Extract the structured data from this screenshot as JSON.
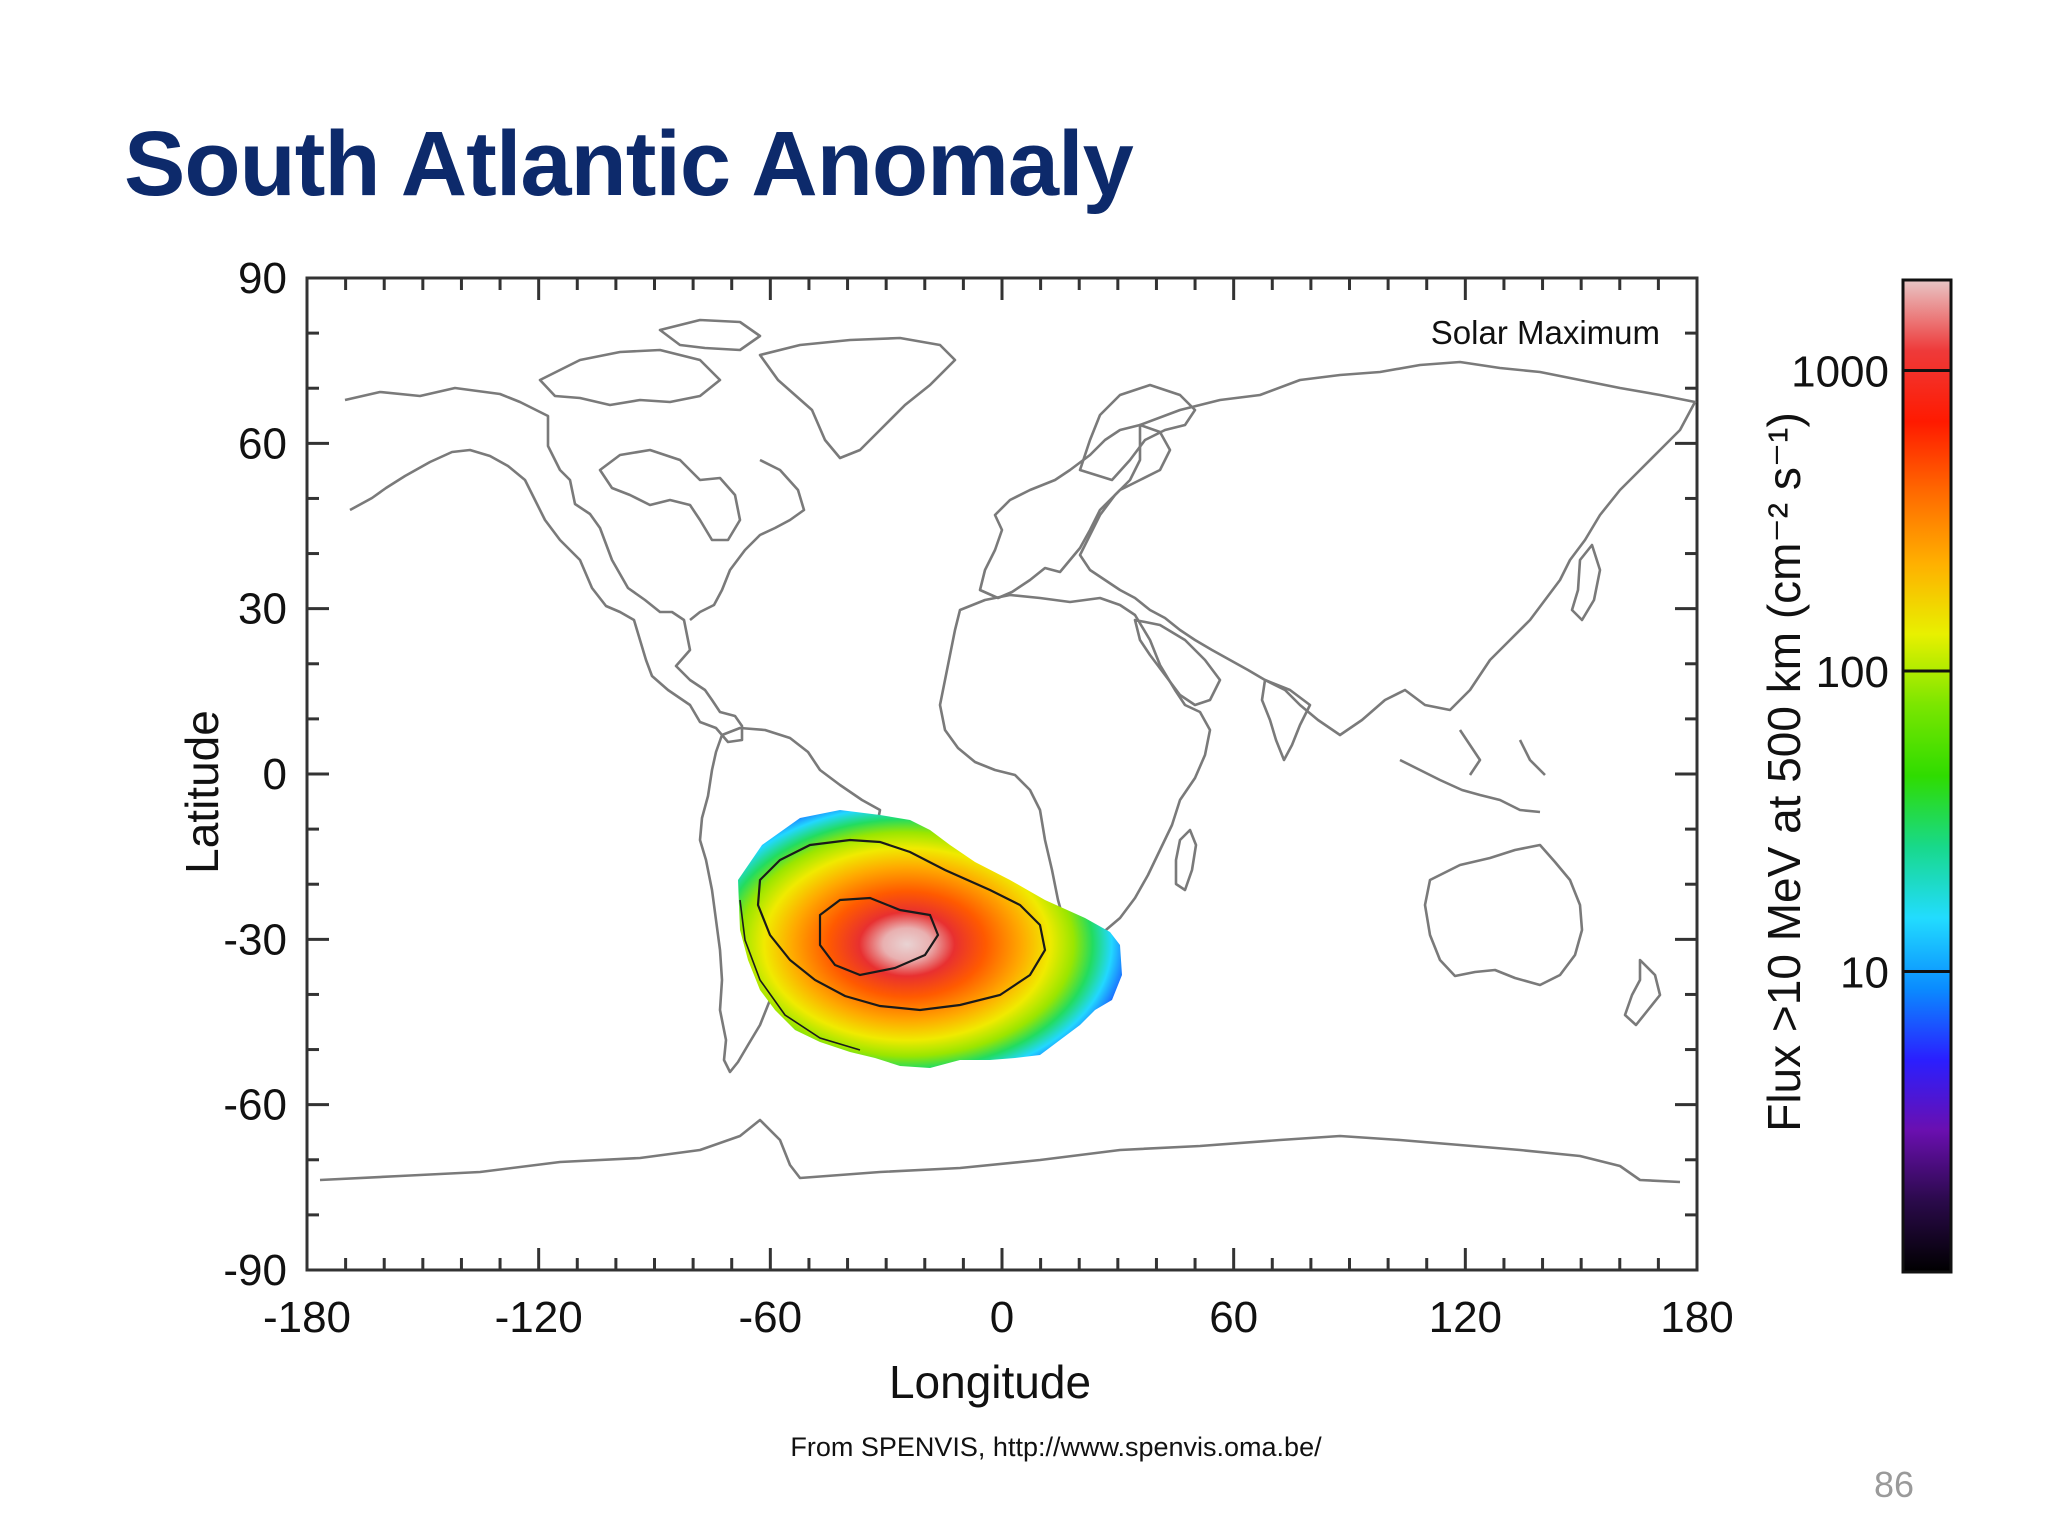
{
  "slide": {
    "title": "South Atlantic Anomaly",
    "credit": "From SPENVIS, http://www.spenvis.oma.be/",
    "page_number": "86"
  },
  "chart_data": {
    "type": "heatmap",
    "map_projection": "equirectangular world map",
    "annotation": "Solar Maximum",
    "xlabel": "Longitude",
    "ylabel": "Latitude",
    "xlim": [
      -180,
      180
    ],
    "ylim": [
      -90,
      90
    ],
    "x_ticks": [
      -180,
      -120,
      -60,
      0,
      60,
      120,
      180
    ],
    "y_ticks": [
      90,
      60,
      30,
      0,
      -30,
      -60,
      -90
    ],
    "colorbar": {
      "label": "Flux >10 MeV at 500 km (cm⁻² s⁻¹)",
      "scale": "log",
      "ticks": [
        "1000",
        "100",
        "10"
      ],
      "tick_values": [
        1000,
        100,
        10
      ],
      "range": [
        1,
        2000
      ],
      "colors": [
        "#000000",
        "#2a0a4a",
        "#6a0fb0",
        "#2a1fff",
        "#0a8cff",
        "#22dcff",
        "#18d98a",
        "#2fdc00",
        "#7ae600",
        "#e8f000",
        "#ffb000",
        "#ff6a00",
        "#ff1a00",
        "#ee3a3a",
        "#e8c6c6"
      ]
    },
    "anomaly_region": {
      "center_lon": -33,
      "center_lat": -30,
      "lon_extent": [
        -70,
        35
      ],
      "lat_extent": [
        -55,
        -7
      ],
      "peak_flux": 2000
    },
    "contours": [
      {
        "level": "1000",
        "lon_range": [
          -47,
          -15
        ],
        "lat_range": [
          -40,
          -25
        ]
      },
      {
        "level": "100",
        "lon_range": [
          -67,
          12
        ],
        "lat_range": [
          -49,
          -12
        ]
      },
      {
        "level": "10",
        "lon_range": [
          -72,
          35
        ],
        "lat_range": [
          -56,
          -7
        ]
      }
    ],
    "coastline_color": "#777777"
  }
}
